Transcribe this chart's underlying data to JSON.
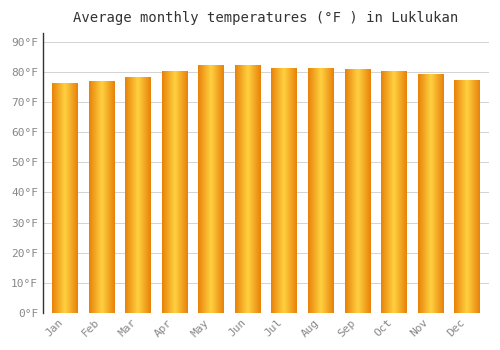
{
  "title": "Average monthly temperatures (°F ) in Luklukan",
  "months": [
    "Jan",
    "Feb",
    "Mar",
    "Apr",
    "May",
    "Jun",
    "Jul",
    "Aug",
    "Sep",
    "Oct",
    "Nov",
    "Dec"
  ],
  "values": [
    76.5,
    77.0,
    78.5,
    80.5,
    82.5,
    82.5,
    81.5,
    81.5,
    81.0,
    80.5,
    79.5,
    77.5
  ],
  "bar_color_left": "#E8820A",
  "bar_color_center": "#FFD040",
  "bar_color_right": "#E8820A",
  "yticks": [
    0,
    10,
    20,
    30,
    40,
    50,
    60,
    70,
    80,
    90
  ],
  "ytick_labels": [
    "0°F",
    "10°F",
    "20°F",
    "30°F",
    "40°F",
    "50°F",
    "60°F",
    "70°F",
    "80°F",
    "90°F"
  ],
  "ylim": [
    0,
    93
  ],
  "background_color": "#FFFFFF",
  "plot_bg_color": "#FFFFFF",
  "grid_color": "#CCCCCC",
  "title_fontsize": 10,
  "tick_fontsize": 8,
  "bar_width": 0.7
}
